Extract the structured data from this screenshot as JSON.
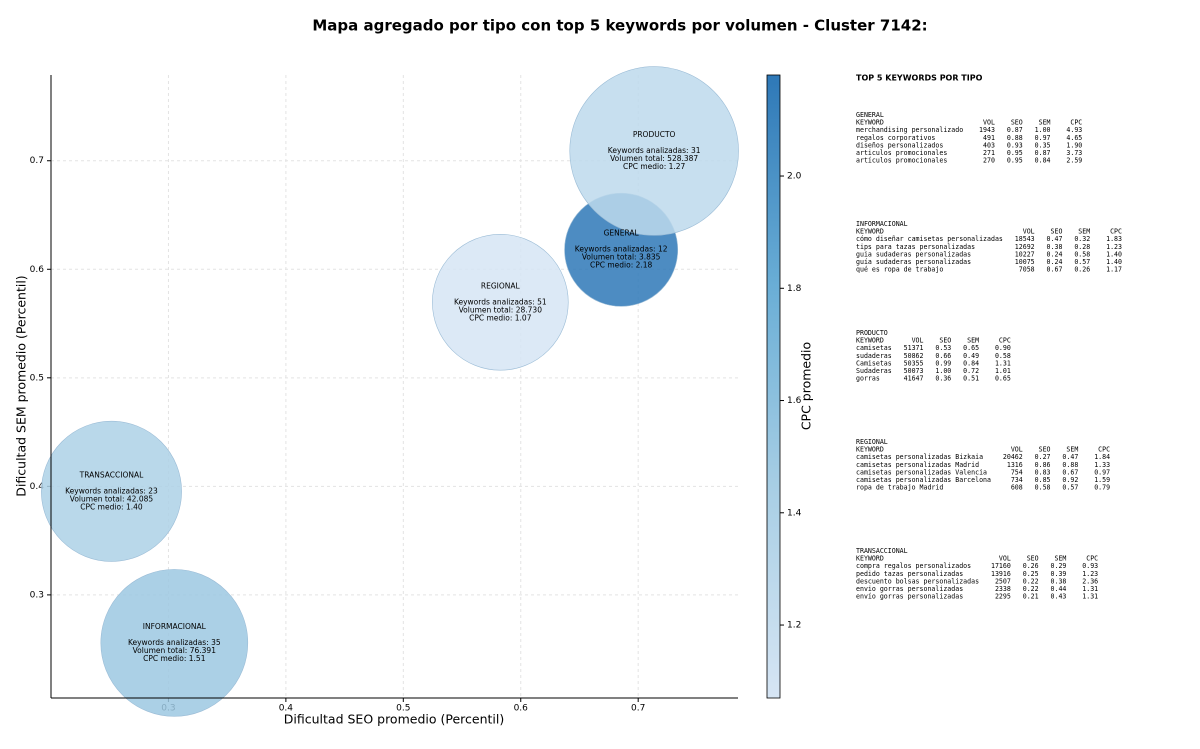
{
  "chart_data": {
    "type": "bubble",
    "title": "Mapa agregado por tipo con top 5 keywords por volumen - Cluster 7142:",
    "x_label": "Dificultad SEO promedio (Percentil)",
    "y_label": "Dificultad SEM promedio (Percentil)",
    "colorbar_label": "CPC promedio",
    "names": [
      "GENERAL",
      "INFORMACIONAL",
      "PRODUCTO",
      "REGIONAL",
      "TRANSACCIONAL"
    ],
    "x": [
      0.6855,
      0.305,
      0.7136,
      0.5826,
      0.2515
    ],
    "y": [
      0.618,
      0.2558,
      0.709,
      0.5696,
      0.3954
    ],
    "sizes": [
      3835,
      76391,
      528387,
      28730,
      42085
    ],
    "colors": [
      2.18,
      1.51,
      1.27,
      1.07,
      1.4
    ],
    "annotations": [
      [
        "Keywords analizadas: 12",
        "Volumen total: 3.835",
        "CPC medio: 2.18"
      ],
      [
        "Keywords analizadas: 35",
        "Volumen total: 76.391",
        "CPC medio: 1.51"
      ],
      [
        "Keywords analizadas: 31",
        "Volumen total: 528.387",
        "CPC medio: 1.27"
      ],
      [
        "Keywords analizadas: 51",
        "Volumen total: 28.730",
        "CPC medio: 1.07"
      ],
      [
        "Keywords analizadas: 23",
        "Volumen total: 42.085",
        "CPC medio: 1.40"
      ]
    ],
    "xlim": [
      0.2,
      0.785
    ],
    "ylim": [
      0.205,
      0.779
    ],
    "xticks": [
      0.3,
      0.4,
      0.5,
      0.6,
      0.7
    ],
    "yticks": [
      0.3,
      0.4,
      0.5,
      0.6,
      0.7
    ],
    "clim": [
      1.07,
      2.18
    ],
    "cticks": [
      1.2,
      1.4,
      1.6,
      1.8,
      {
        "value": 2,
        "label": "2.0"
      }
    ],
    "grid": true
  },
  "side_panel": {
    "title": "TOP 5 KEYWORDS POR TIPO",
    "header": [
      "KEYWORD",
      "VOL",
      "SEO",
      "SEM",
      "CPC"
    ],
    "sections": [
      {
        "name": "GENERAL",
        "rows": [
          [
            "merchandising personalizado",
            "1943",
            "0.87",
            "1.00",
            "4.93"
          ],
          [
            "regalos corporativos",
            "491",
            "0.88",
            "0.97",
            "4.65"
          ],
          [
            "diseños personalizados",
            "403",
            "0.93",
            "0.35",
            "1.90"
          ],
          [
            "articulos promocionales",
            "271",
            "0.95",
            "0.87",
            "3.73"
          ],
          [
            "artículos promocionales",
            "270",
            "0.95",
            "0.84",
            "2.59"
          ]
        ]
      },
      {
        "name": "INFORMACIONAL",
        "rows": [
          [
            "cómo diseñar camisetas personalizadas",
            "18543",
            "0.47",
            "0.32",
            "1.83"
          ],
          [
            "tips para tazas personalizadas",
            "12692",
            "0.38",
            "0.28",
            "1.23"
          ],
          [
            "guia sudaderas personalizadas",
            "10227",
            "0.24",
            "0.58",
            "1.40"
          ],
          [
            "guía sudaderas personalizadas",
            "10075",
            "0.24",
            "0.57",
            "1.40"
          ],
          [
            "qué es ropa de trabajo",
            "7058",
            "0.67",
            "0.26",
            "1.17"
          ]
        ]
      },
      {
        "name": "PRODUCTO",
        "rows": [
          [
            "camisetas",
            "51371",
            "0.53",
            "0.65",
            "0.90"
          ],
          [
            "sudaderas",
            "50862",
            "0.66",
            "0.49",
            "0.58"
          ],
          [
            "Camisetas",
            "50355",
            "0.99",
            "0.84",
            "1.31"
          ],
          [
            "Sudaderas",
            "50073",
            "1.00",
            "0.72",
            "1.01"
          ],
          [
            "gorras",
            "41647",
            "0.36",
            "0.51",
            "0.65"
          ]
        ]
      },
      {
        "name": "REGIONAL",
        "rows": [
          [
            "camisetas personalizadas Bizkaia",
            "20462",
            "0.27",
            "0.47",
            "1.84"
          ],
          [
            "camisetas personalizadas Madrid",
            "1316",
            "0.86",
            "0.88",
            "1.33"
          ],
          [
            "camisetas personalizadas Valencia",
            "754",
            "0.83",
            "0.67",
            "0.97"
          ],
          [
            "camisetas personalizadas Barcelona",
            "734",
            "0.85",
            "0.92",
            "1.59"
          ],
          [
            "ropa de trabajo Madrid",
            "608",
            "0.58",
            "0.57",
            "0.79"
          ]
        ]
      },
      {
        "name": "TRANSACCIONAL",
        "rows": [
          [
            "compra regalos personalizados",
            "17160",
            "0.26",
            "0.29",
            "0.93"
          ],
          [
            "pedido tazas personalizadas",
            "13916",
            "0.25",
            "0.39",
            "1.23"
          ],
          [
            "descuento bolsas personalizadas",
            "2507",
            "0.22",
            "0.38",
            "2.36"
          ],
          [
            "envio gorras personalizadas",
            "2338",
            "0.22",
            "0.44",
            "1.31"
          ],
          [
            "envío gorras personalizadas",
            "2295",
            "0.21",
            "0.43",
            "1.31"
          ]
        ]
      }
    ]
  }
}
